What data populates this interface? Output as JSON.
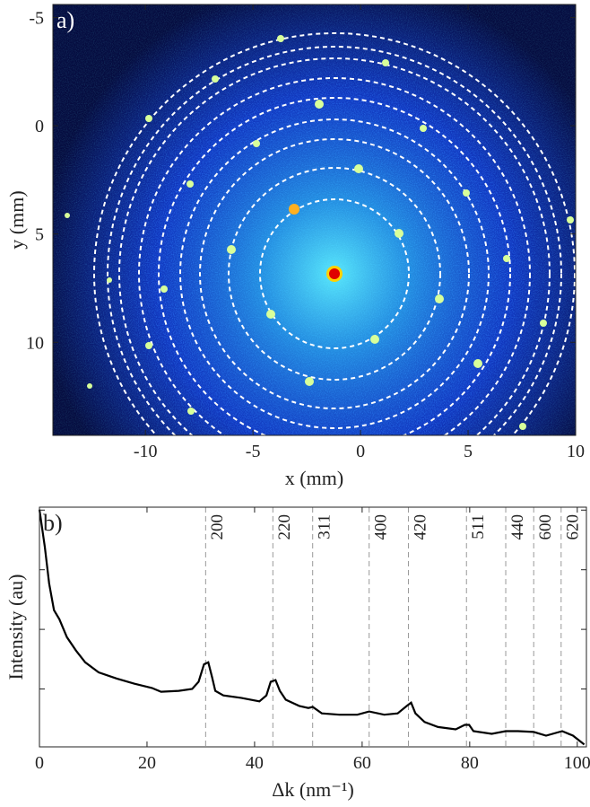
{
  "chart_data": [
    {
      "type": "image",
      "label": "a)",
      "xlabel": "x (mm)",
      "ylabel": "y (mm)",
      "xlim": [
        -14.3,
        10
      ],
      "ylim": [
        14.3,
        -5.6
      ],
      "xticks": [
        -10,
        -5,
        0,
        5,
        10
      ],
      "yticks": [
        -5,
        0,
        5,
        10
      ]
    },
    {
      "type": "line",
      "label": "b)",
      "xlabel": "Δk (nm⁻¹)",
      "ylabel": "Intensity (au)",
      "log_y": true,
      "xlim": [
        0,
        101.7
      ],
      "ylim": [
        1.07,
        11200
      ],
      "xticks": [
        0,
        20,
        40,
        60,
        80,
        100
      ],
      "yticks": [
        10,
        100,
        1000,
        10000
      ],
      "x": [
        0,
        1.0,
        1.8,
        2.7,
        3.7,
        5.1,
        6.8,
        8.5,
        11,
        14.3,
        17.6,
        20.9,
        22.6,
        25.9,
        28.4,
        29.6,
        30.6,
        31.4,
        32.1,
        32.7,
        34.2,
        37.5,
        40.9,
        42.2,
        43,
        43.9,
        44.7,
        45.8,
        48.3,
        50,
        50.8,
        52.5,
        55.8,
        59.1,
        61.3,
        64.1,
        66.6,
        68.3,
        69.1,
        69.9,
        71.6,
        74.1,
        77.4,
        79.1,
        79.9,
        80.7,
        84.1,
        86.7,
        89,
        91.9,
        94.2,
        97.2,
        99.2,
        101.3
      ],
      "series": [
        {
          "color": "#000000",
          "values": [
            10200,
            2400,
            590,
            210,
            148,
            74,
            44,
            28,
            19,
            15,
            12.3,
            10.4,
            9.0,
            9.3,
            10,
            13.2,
            26,
            28,
            15.8,
            9.3,
            7.8,
            7.1,
            6.2,
            7.8,
            13.2,
            14.1,
            9.3,
            6.6,
            5.2,
            4.8,
            5.0,
            3.9,
            3.7,
            3.7,
            4.2,
            3.7,
            3.9,
            5.2,
            5.9,
            3.9,
            2.8,
            2.3,
            2.1,
            2.5,
            2.5,
            1.96,
            1.77,
            1.96,
            1.96,
            1.9,
            1.65,
            1.96,
            1.65,
            1.17
          ]
        }
      ],
      "peaks": [
        {
          "x": 30.9,
          "label": "200"
        },
        {
          "x": 43.4,
          "label": "220"
        },
        {
          "x": 50.8,
          "label": "311"
        },
        {
          "x": 61.3,
          "label": "400"
        },
        {
          "x": 68.6,
          "label": "420"
        },
        {
          "x": 79.4,
          "label": "511"
        },
        {
          "x": 86.7,
          "label": "440"
        },
        {
          "x": 91.9,
          "label": "600"
        },
        {
          "x": 97.0,
          "label": "620"
        }
      ]
    }
  ]
}
